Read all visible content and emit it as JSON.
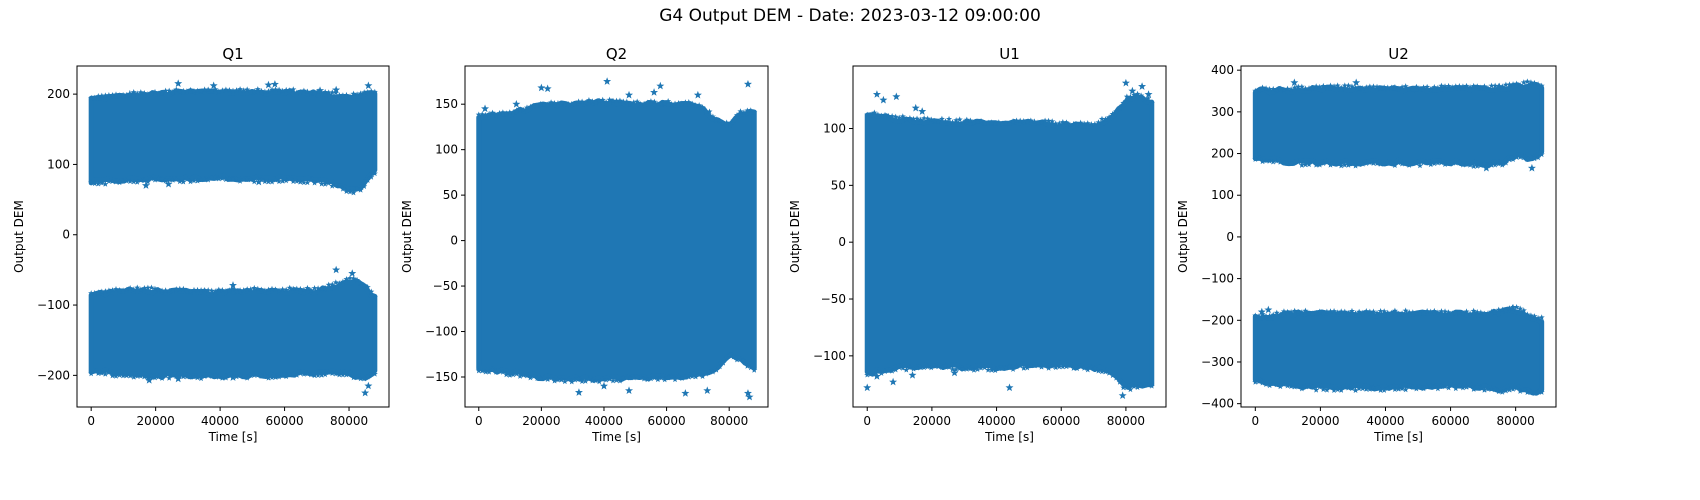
{
  "figure": {
    "title": "G4 Output DEM - Date: 2023-03-12 09:00:00",
    "marker_color": "#1f77b4"
  },
  "chart_data": [
    {
      "type": "scatter",
      "title": "Q1",
      "xlabel": "Time [s]",
      "ylabel": "Output DEM",
      "xlim": [
        -4400,
        92400
      ],
      "ylim": [
        -245,
        240
      ],
      "xticks": [
        0,
        20000,
        40000,
        60000,
        80000
      ],
      "yticks": [
        -200,
        -100,
        0,
        100,
        200
      ],
      "x_range": [
        0,
        88000
      ],
      "marker": "star",
      "bands": [
        {
          "x": [
            0,
            10000,
            20000,
            30000,
            40000,
            50000,
            60000,
            70000,
            76000,
            80000,
            84000,
            88000
          ],
          "low": [
            75,
            78,
            80,
            80,
            82,
            80,
            80,
            78,
            72,
            62,
            68,
            90
          ],
          "high": [
            193,
            197,
            200,
            203,
            203,
            202,
            203,
            200,
            198,
            196,
            200,
            200
          ]
        },
        {
          "x": [
            0,
            10000,
            20000,
            30000,
            40000,
            50000,
            60000,
            70000,
            76000,
            80000,
            84000,
            88000
          ],
          "low": [
            -193,
            -198,
            -200,
            -200,
            -200,
            -200,
            -198,
            -196,
            -195,
            -195,
            -205,
            -195
          ],
          "high": [
            -85,
            -80,
            -80,
            -82,
            -83,
            -80,
            -80,
            -80,
            -72,
            -65,
            -70,
            -90
          ]
        }
      ],
      "outliers": [
        [
          12000,
          200
        ],
        [
          27000,
          215
        ],
        [
          38000,
          212
        ],
        [
          55000,
          213
        ],
        [
          57000,
          214
        ],
        [
          71000,
          205
        ],
        [
          76000,
          206
        ],
        [
          86000,
          212
        ],
        [
          17000,
          70
        ],
        [
          24000,
          72
        ],
        [
          52000,
          75
        ],
        [
          76000,
          -50
        ],
        [
          81000,
          -55
        ],
        [
          44000,
          -72
        ],
        [
          18000,
          -207
        ],
        [
          27000,
          -205
        ],
        [
          44000,
          -203
        ],
        [
          85000,
          -225
        ],
        [
          86000,
          -215
        ]
      ]
    },
    {
      "type": "scatter",
      "title": "Q2",
      "xlabel": "Time [s]",
      "ylabel": "Output DEM",
      "xlim": [
        -4400,
        92400
      ],
      "ylim": [
        -183,
        192
      ],
      "xticks": [
        0,
        20000,
        40000,
        60000,
        80000
      ],
      "yticks": [
        -150,
        -100,
        -50,
        0,
        50,
        100,
        150
      ],
      "x_range": [
        0,
        88000
      ],
      "marker": "star",
      "bands": [
        {
          "x": [
            0,
            10000,
            20000,
            30000,
            40000,
            50000,
            60000,
            70000,
            76000,
            80000,
            84000,
            88000
          ],
          "low": [
            -140,
            -145,
            -150,
            -152,
            -152,
            -150,
            -150,
            -148,
            -140,
            -125,
            -130,
            -140
          ],
          "high": [
            135,
            140,
            148,
            150,
            152,
            150,
            150,
            148,
            132,
            125,
            140,
            140
          ]
        }
      ],
      "outliers": [
        [
          2000,
          145
        ],
        [
          12000,
          150
        ],
        [
          20000,
          168
        ],
        [
          22000,
          167
        ],
        [
          41000,
          175
        ],
        [
          48000,
          160
        ],
        [
          56000,
          163
        ],
        [
          58000,
          170
        ],
        [
          70000,
          160
        ],
        [
          86000,
          172
        ],
        [
          32000,
          -167
        ],
        [
          40000,
          -160
        ],
        [
          48000,
          -165
        ],
        [
          66000,
          -168
        ],
        [
          73000,
          -165
        ],
        [
          86000,
          -168
        ],
        [
          86500,
          -172
        ]
      ]
    },
    {
      "type": "scatter",
      "title": "U1",
      "xlabel": "Time [s]",
      "ylabel": "Output DEM",
      "xlim": [
        -4400,
        92400
      ],
      "ylim": [
        -145,
        155
      ],
      "xticks": [
        0,
        20000,
        40000,
        60000,
        80000
      ],
      "yticks": [
        -100,
        -50,
        0,
        50,
        100
      ],
      "x_range": [
        0,
        88000
      ],
      "marker": "star",
      "bands": [
        {
          "x": [
            0,
            10000,
            20000,
            30000,
            40000,
            50000,
            60000,
            70000,
            76000,
            80000,
            84000,
            88000
          ],
          "low": [
            -115,
            -110,
            -108,
            -110,
            -110,
            -108,
            -108,
            -110,
            -115,
            -128,
            -125,
            -125
          ],
          "high": [
            112,
            108,
            106,
            105,
            104,
            105,
            103,
            102,
            110,
            125,
            128,
            122
          ]
        }
      ],
      "outliers": [
        [
          3000,
          130
        ],
        [
          5000,
          125
        ],
        [
          9000,
          128
        ],
        [
          15000,
          118
        ],
        [
          17000,
          115
        ],
        [
          80000,
          140
        ],
        [
          82000,
          133
        ],
        [
          85000,
          137
        ],
        [
          87000,
          130
        ],
        [
          0,
          -128
        ],
        [
          3000,
          -118
        ],
        [
          8000,
          -123
        ],
        [
          14000,
          -117
        ],
        [
          27000,
          -115
        ],
        [
          44000,
          -128
        ],
        [
          79000,
          -135
        ]
      ]
    },
    {
      "type": "scatter",
      "title": "U2",
      "xlabel": "Time [s]",
      "ylabel": "Output DEM",
      "xlim": [
        -4400,
        92400
      ],
      "ylim": [
        -408,
        410
      ],
      "xticks": [
        0,
        20000,
        40000,
        60000,
        80000
      ],
      "yticks": [
        -400,
        -300,
        -200,
        -100,
        0,
        100,
        200,
        300,
        400
      ],
      "x_range": [
        0,
        88000
      ],
      "marker": "star",
      "bands": [
        {
          "x": [
            0,
            10000,
            20000,
            30000,
            40000,
            50000,
            60000,
            70000,
            76000,
            80000,
            84000,
            88000
          ],
          "low": [
            190,
            180,
            180,
            178,
            180,
            178,
            180,
            175,
            180,
            195,
            190,
            200
          ],
          "high": [
            350,
            352,
            355,
            355,
            355,
            352,
            355,
            355,
            358,
            360,
            365,
            362
          ]
        },
        {
          "x": [
            0,
            10000,
            20000,
            30000,
            40000,
            50000,
            60000,
            70000,
            76000,
            80000,
            84000,
            88000
          ],
          "low": [
            -345,
            -355,
            -360,
            -360,
            -360,
            -358,
            -355,
            -360,
            -365,
            -360,
            -370,
            -370
          ],
          "high": [
            -195,
            -185,
            -185,
            -185,
            -185,
            -185,
            -185,
            -185,
            -180,
            -175,
            -190,
            -200
          ]
        }
      ],
      "outliers": [
        [
          4000,
          -175
        ],
        [
          2000,
          -180
        ],
        [
          12000,
          370
        ],
        [
          31000,
          370
        ],
        [
          75000,
          360
        ],
        [
          71000,
          165
        ],
        [
          85000,
          165
        ],
        [
          79000,
          -172
        ]
      ]
    }
  ]
}
